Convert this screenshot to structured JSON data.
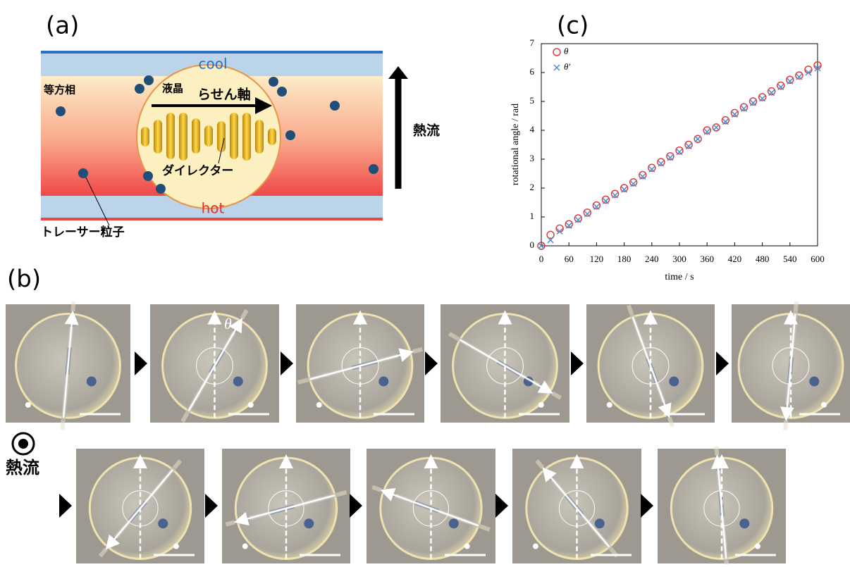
{
  "panel_a": {
    "label": "(a)",
    "cool": "cool",
    "hot": "hot",
    "isotropic": "等方相",
    "liquid_crystal": "液晶",
    "helical_axis": "らせん軸",
    "director": "ダイレクター",
    "heat_flow": "熱流",
    "tracer": "トレーサー粒子"
  },
  "panel_b": {
    "label": "(b)",
    "theta": "θ",
    "heat_flow": "熱流"
  },
  "panel_c": {
    "label": "(c)"
  },
  "chart_data": {
    "type": "scatter",
    "x_label": "time / s",
    "y_label": "rotational angle / rad",
    "x": [
      0,
      20,
      40,
      60,
      80,
      100,
      120,
      140,
      160,
      180,
      200,
      220,
      240,
      260,
      280,
      300,
      320,
      340,
      360,
      380,
      400,
      420,
      440,
      460,
      480,
      500,
      520,
      540,
      560,
      580,
      600
    ],
    "series": [
      {
        "name": "θ",
        "color": "#e03c3c",
        "marker": "circle",
        "values": [
          0,
          0.38,
          0.6,
          0.75,
          0.95,
          1.15,
          1.4,
          1.6,
          1.8,
          2.0,
          2.2,
          2.45,
          2.7,
          2.9,
          3.1,
          3.3,
          3.5,
          3.7,
          4.0,
          4.1,
          4.35,
          4.6,
          4.8,
          5.0,
          5.15,
          5.35,
          5.55,
          5.75,
          5.9,
          6.1,
          6.25
        ]
      },
      {
        "name": "θ′",
        "color": "#4a8fd0",
        "marker": "cross",
        "values": [
          0,
          0.2,
          0.5,
          0.7,
          0.9,
          1.1,
          1.35,
          1.55,
          1.75,
          1.95,
          2.15,
          2.4,
          2.65,
          2.85,
          3.05,
          3.25,
          3.45,
          3.7,
          3.95,
          4.1,
          4.3,
          4.55,
          4.75,
          4.95,
          5.1,
          5.3,
          5.5,
          5.7,
          5.85,
          6.0,
          6.15
        ]
      }
    ],
    "xlim": [
      0,
      600
    ],
    "xticks": [
      0,
      60,
      120,
      180,
      240,
      300,
      360,
      420,
      480,
      540,
      600
    ],
    "ylim": [
      0,
      7
    ],
    "yticks": [
      0,
      1,
      2,
      3,
      4,
      5,
      6,
      7
    ]
  }
}
